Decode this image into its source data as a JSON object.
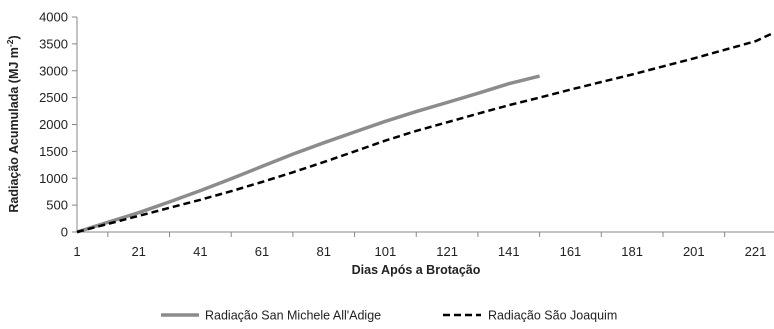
{
  "chart_data": {
    "type": "line",
    "xlabel": "Dias Após a Brotação",
    "ylabel": "Radiação Acumulada (MJ m",
    "ylabel_sup": "-2",
    "ylabel_close": ")",
    "xlim": [
      1,
      227
    ],
    "ylim": [
      0,
      4000
    ],
    "x_ticks": [
      1,
      21,
      41,
      61,
      81,
      101,
      121,
      141,
      161,
      181,
      201,
      221
    ],
    "y_ticks": [
      0,
      500,
      1000,
      1500,
      2000,
      2500,
      3000,
      3500,
      4000
    ],
    "grid": false,
    "legend_position": "bottom",
    "series": [
      {
        "name": "Radiação San Michele All'Adige",
        "color": "#8c8c8c",
        "style": "solid",
        "x": [
          1,
          11,
          21,
          31,
          41,
          51,
          61,
          71,
          81,
          91,
          101,
          111,
          121,
          131,
          141,
          151
        ],
        "values": [
          0,
          180,
          360,
          560,
          770,
          990,
          1220,
          1450,
          1660,
          1860,
          2060,
          2240,
          2410,
          2580,
          2760,
          2900
        ]
      },
      {
        "name": "Radiação São Joaquim",
        "color": "#000000",
        "style": "dashed",
        "x": [
          1,
          11,
          21,
          31,
          41,
          51,
          61,
          71,
          81,
          91,
          101,
          111,
          121,
          131,
          141,
          151,
          161,
          171,
          181,
          191,
          201,
          211,
          221,
          227
        ],
        "values": [
          0,
          150,
          300,
          450,
          600,
          760,
          930,
          1110,
          1300,
          1500,
          1700,
          1880,
          2040,
          2200,
          2360,
          2500,
          2650,
          2790,
          2930,
          3080,
          3230,
          3390,
          3550,
          3710
        ]
      }
    ]
  }
}
